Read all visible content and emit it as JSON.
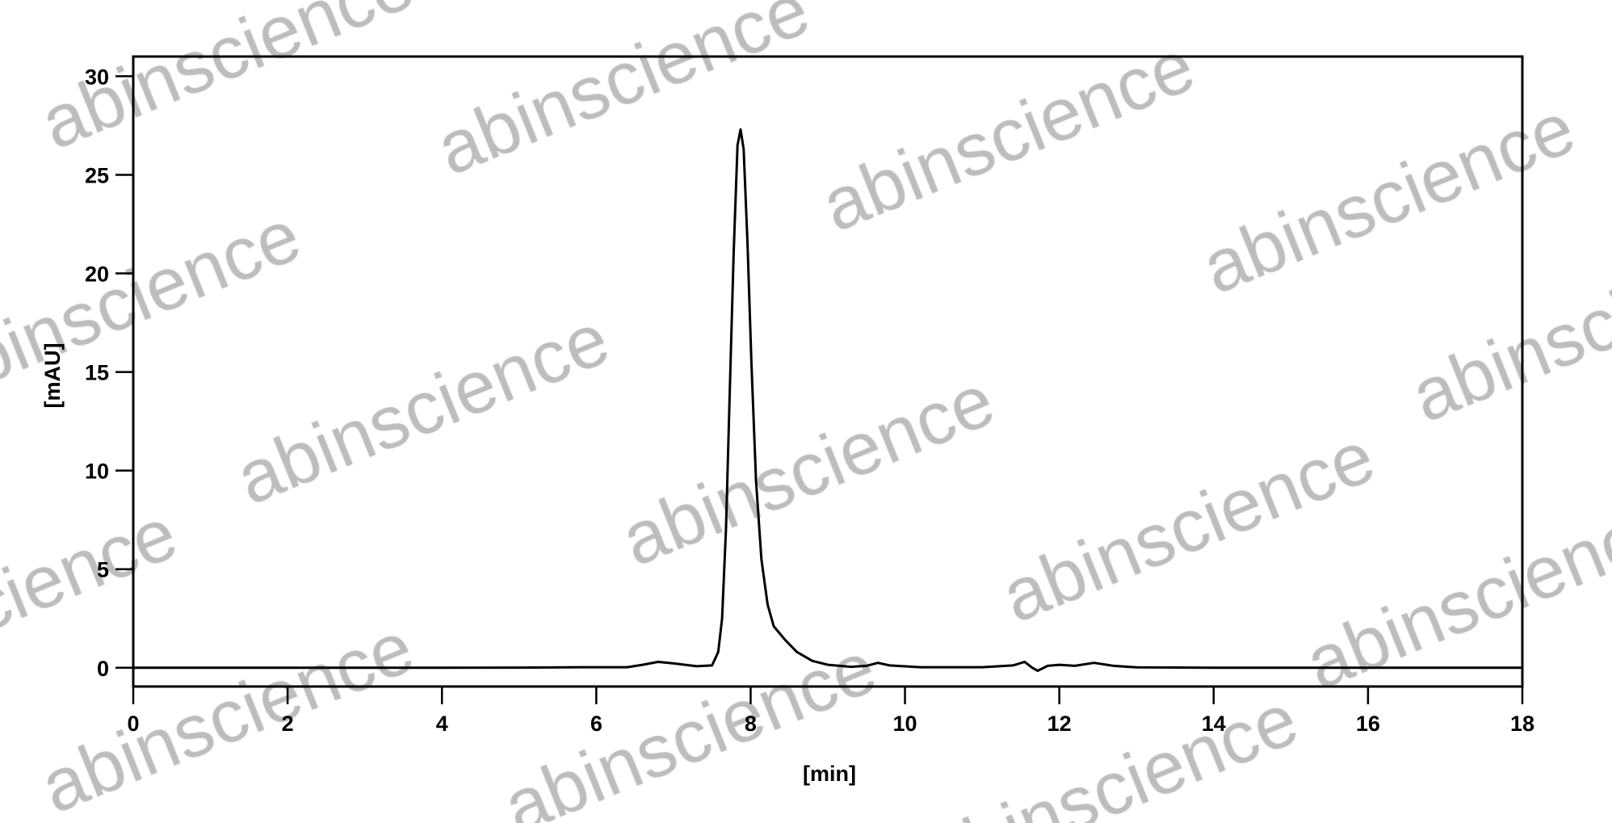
{
  "watermark": "abinscience",
  "colors": {
    "trace": "#000000",
    "frame": "#000000",
    "watermark": "#bdbdbd"
  },
  "chart_data": {
    "type": "line",
    "title": "",
    "xlabel": "[min]",
    "ylabel": "[mAU]",
    "xlim": [
      0,
      18
    ],
    "ylim": [
      -0.95,
      31
    ],
    "xticks": [
      0,
      2,
      4,
      6,
      8,
      10,
      12,
      14,
      16,
      18
    ],
    "yticks": [
      0,
      5,
      10,
      15,
      20,
      25,
      30
    ],
    "grid": false,
    "series": [
      {
        "x": [
          0,
          1,
          2,
          3,
          4,
          5,
          5.8,
          6.4,
          6.6,
          6.8,
          7.0,
          7.3,
          7.5,
          7.58,
          7.63,
          7.68,
          7.73,
          7.78,
          7.83,
          7.87,
          7.91,
          7.96,
          8.01,
          8.07,
          8.14,
          8.22,
          8.3,
          8.45,
          8.6,
          8.8,
          9.0,
          9.3,
          9.5,
          9.65,
          9.8,
          10.2,
          11.0,
          11.4,
          11.55,
          11.65,
          11.72,
          11.85,
          12.0,
          12.2,
          12.45,
          12.7,
          13.0,
          14,
          16,
          18
        ],
        "y": [
          0,
          0,
          0,
          0,
          0,
          0.01,
          0.03,
          0.03,
          0.15,
          0.3,
          0.22,
          0.08,
          0.12,
          0.8,
          2.5,
          7,
          14,
          21,
          26.5,
          27.3,
          26.3,
          21.5,
          15.5,
          9.5,
          5.5,
          3.2,
          2.1,
          1.4,
          0.8,
          0.35,
          0.15,
          0.05,
          0.1,
          0.25,
          0.12,
          0.03,
          0.03,
          0.12,
          0.3,
          0.0,
          -0.15,
          0.1,
          0.15,
          0.1,
          0.25,
          0.1,
          0.02,
          0,
          0,
          0
        ]
      }
    ]
  }
}
